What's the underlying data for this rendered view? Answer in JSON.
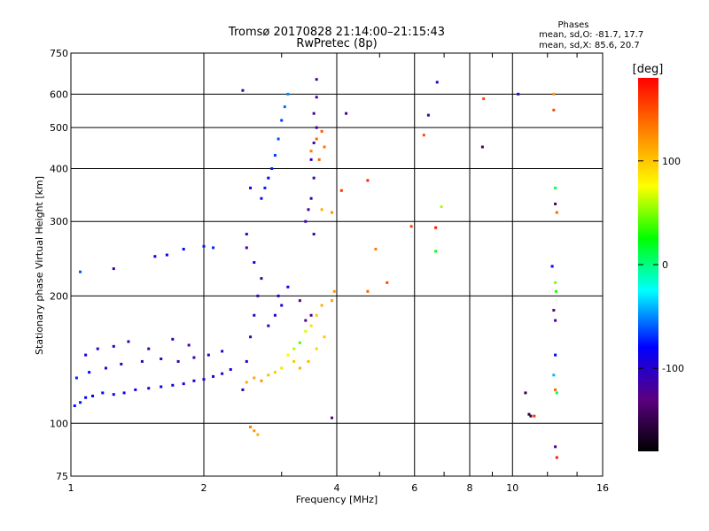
{
  "title_line1": "Tromsø 20170828 21:14:00–21:15:43",
  "title_line2": "RwPretec (8p)",
  "stats": {
    "heading": "Phases",
    "line_o": "mean, sd,O: -81.7, 17.7",
    "line_x": "mean, sd,X:  85.6, 20.7"
  },
  "chart_data": {
    "type": "scatter",
    "title": "Tromsø 20170828 21:14:00–21:15:43",
    "subtitle": "RwPretec (8p)",
    "xlabel": "Frequency [MHz]",
    "ylabel": "Stationary phase Virtual Height [km]",
    "x_scale": "log",
    "y_scale": "log",
    "xlim": [
      1,
      16
    ],
    "ylim": [
      75,
      750
    ],
    "x_ticks": [
      "1",
      "2",
      "4",
      "6",
      "8",
      "10",
      "16"
    ],
    "y_ticks": [
      "75",
      "100",
      "200",
      "300",
      "400",
      "500",
      "600",
      "750"
    ],
    "grid": true,
    "colorbar": {
      "label": "[deg]",
      "range": [
        -180,
        180
      ],
      "ticks": [
        "100",
        "0",
        "-100"
      ],
      "colors": [
        "#000000",
        "#5a0080",
        "#0000ff",
        "#00ffff",
        "#00ff00",
        "#ffff00",
        "#ff8000",
        "#ff0000"
      ]
    },
    "series": [
      {
        "points": [
          [
            1.02,
            110,
            -75
          ],
          [
            1.05,
            112,
            -72
          ],
          [
            1.08,
            115,
            -78
          ],
          [
            1.12,
            116,
            -80
          ],
          [
            1.18,
            118,
            -76
          ],
          [
            1.25,
            117,
            -84
          ],
          [
            1.32,
            118,
            -82
          ],
          [
            1.4,
            120,
            -86
          ],
          [
            1.5,
            121,
            -88
          ],
          [
            1.6,
            122,
            -83
          ],
          [
            1.7,
            123,
            -90
          ],
          [
            1.8,
            124,
            -87
          ],
          [
            1.9,
            126,
            -92
          ],
          [
            2.0,
            127,
            -95
          ],
          [
            2.1,
            129,
            -88
          ],
          [
            2.2,
            131,
            -90
          ],
          [
            2.3,
            134,
            -95
          ],
          [
            1.03,
            128,
            -70
          ],
          [
            1.1,
            132,
            -76
          ],
          [
            1.2,
            135,
            -90
          ],
          [
            1.3,
            138,
            -95
          ],
          [
            1.45,
            140,
            -105
          ],
          [
            1.6,
            142,
            -100
          ],
          [
            1.75,
            140,
            -108
          ],
          [
            1.9,
            143,
            -110
          ],
          [
            2.05,
            145,
            -105
          ],
          [
            2.2,
            148,
            -100
          ],
          [
            1.15,
            150,
            -95
          ],
          [
            1.25,
            152,
            -102
          ],
          [
            1.35,
            156,
            -110
          ],
          [
            1.5,
            150,
            -112
          ],
          [
            1.7,
            158,
            -108
          ],
          [
            1.85,
            153,
            -115
          ],
          [
            1.08,
            145,
            -88
          ],
          [
            1.55,
            248,
            -85
          ],
          [
            1.65,
            250,
            -80
          ],
          [
            1.8,
            258,
            -76
          ],
          [
            2.0,
            262,
            -72
          ],
          [
            2.1,
            260,
            -70
          ],
          [
            1.25,
            232,
            -110
          ],
          [
            1.05,
            228,
            -60
          ],
          [
            2.45,
            120,
            -100
          ],
          [
            2.5,
            140,
            -95
          ],
          [
            2.55,
            160,
            -110
          ],
          [
            2.6,
            180,
            -105
          ],
          [
            2.65,
            200,
            -108
          ],
          [
            2.7,
            220,
            -112
          ],
          [
            2.6,
            240,
            -100
          ],
          [
            2.5,
            260,
            -115
          ],
          [
            2.5,
            280,
            -110
          ],
          [
            2.8,
            170,
            -98
          ],
          [
            2.9,
            180,
            -100
          ],
          [
            2.95,
            200,
            -95
          ],
          [
            3.0,
            190,
            -85
          ],
          [
            3.1,
            210,
            -80
          ],
          [
            2.7,
            340,
            -75
          ],
          [
            2.75,
            360,
            -72
          ],
          [
            2.8,
            380,
            -78
          ],
          [
            2.85,
            400,
            -70
          ],
          [
            2.9,
            430,
            -65
          ],
          [
            2.95,
            470,
            -60
          ],
          [
            3.0,
            520,
            -65
          ],
          [
            3.05,
            560,
            -55
          ],
          [
            3.1,
            600,
            -50
          ],
          [
            2.45,
            612,
            -110
          ],
          [
            2.55,
            360,
            -85
          ],
          [
            3.4,
            300,
            -110
          ],
          [
            3.45,
            320,
            -115
          ],
          [
            3.5,
            340,
            -108
          ],
          [
            3.55,
            380,
            -112
          ],
          [
            3.5,
            420,
            -100
          ],
          [
            3.55,
            460,
            -115
          ],
          [
            3.6,
            500,
            -110
          ],
          [
            3.55,
            540,
            -118
          ],
          [
            3.6,
            590,
            -112
          ],
          [
            3.6,
            650,
            -120
          ],
          [
            3.55,
            280,
            -105
          ],
          [
            3.4,
            175,
            -130
          ],
          [
            3.3,
            195,
            -125
          ],
          [
            3.5,
            180,
            -120
          ],
          [
            3.9,
            103,
            -125
          ],
          [
            2.55,
            98,
            130
          ],
          [
            2.6,
            96,
            120
          ],
          [
            2.65,
            94,
            110
          ],
          [
            2.5,
            125,
            110
          ],
          [
            2.6,
            128,
            115
          ],
          [
            2.7,
            126,
            120
          ],
          [
            2.8,
            130,
            105
          ],
          [
            2.9,
            132,
            100
          ],
          [
            3.0,
            135,
            90
          ],
          [
            3.1,
            145,
            80
          ],
          [
            3.2,
            150,
            60
          ],
          [
            3.3,
            155,
            40
          ],
          [
            3.4,
            165,
            70
          ],
          [
            3.5,
            170,
            90
          ],
          [
            3.6,
            180,
            100
          ],
          [
            3.7,
            190,
            110
          ],
          [
            3.2,
            140,
            100
          ],
          [
            3.3,
            135,
            110
          ],
          [
            3.45,
            140,
            105
          ],
          [
            3.6,
            150,
            95
          ],
          [
            3.75,
            160,
            100
          ],
          [
            3.9,
            195,
            115
          ],
          [
            3.95,
            205,
            120
          ],
          [
            3.7,
            320,
            110
          ],
          [
            3.9,
            315,
            120
          ],
          [
            3.6,
            470,
            140
          ],
          [
            3.7,
            490,
            145
          ],
          [
            3.75,
            450,
            135
          ],
          [
            3.65,
            420,
            140
          ],
          [
            3.5,
            440,
            130
          ],
          [
            4.1,
            355,
            160
          ],
          [
            4.7,
            375,
            165
          ],
          [
            4.7,
            205,
            140
          ],
          [
            5.2,
            215,
            150
          ],
          [
            4.9,
            258,
            130
          ],
          [
            5.9,
            292,
            155
          ],
          [
            6.3,
            480,
            150
          ],
          [
            6.7,
            290,
            170
          ],
          [
            6.9,
            325,
            60
          ],
          [
            6.7,
            255,
            20
          ],
          [
            6.45,
            535,
            -110
          ],
          [
            6.75,
            640,
            -100
          ],
          [
            4.2,
            540,
            -120
          ],
          [
            8.6,
            585,
            150
          ],
          [
            8.55,
            450,
            -140
          ],
          [
            10.3,
            600,
            -100
          ],
          [
            12.4,
            550,
            150
          ],
          [
            12.4,
            600,
            120
          ],
          [
            12.5,
            360,
            10
          ],
          [
            12.5,
            330,
            -140
          ],
          [
            12.6,
            315,
            140
          ],
          [
            12.3,
            235,
            -80
          ],
          [
            12.5,
            215,
            50
          ],
          [
            12.55,
            205,
            30
          ],
          [
            12.4,
            185,
            -130
          ],
          [
            12.5,
            175,
            -115
          ],
          [
            12.5,
            145,
            -80
          ],
          [
            12.4,
            130,
            -40
          ],
          [
            12.5,
            120,
            140
          ],
          [
            12.6,
            118,
            10
          ],
          [
            10.7,
            118,
            -150
          ],
          [
            10.9,
            105,
            -160
          ],
          [
            11.0,
            104,
            -145
          ],
          [
            11.2,
            104,
            160
          ],
          [
            12.5,
            88,
            -120
          ],
          [
            12.6,
            83,
            170
          ]
        ]
      }
    ]
  }
}
